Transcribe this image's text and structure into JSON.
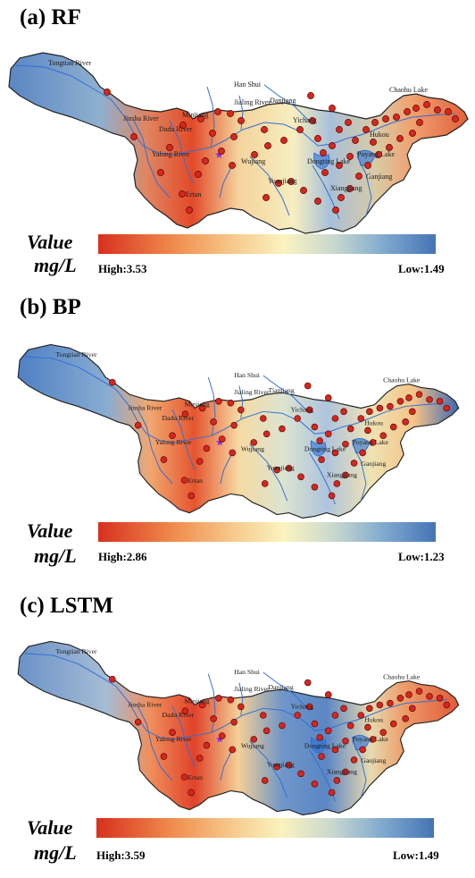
{
  "panels": [
    {
      "title": "(a) RF",
      "legend": {
        "value_label": "Value",
        "unit_label": "mg/L",
        "high": "High:3.53",
        "low": "Low:1.49"
      },
      "labels": {
        "tongtian": "Tongtian River",
        "jinsha": "Jinsha River",
        "dadu": "Dadu River",
        "minjiang": "Minjiang",
        "yalong": "Yalong River",
        "ertan": "Ertan",
        "hanshui": "Han Shui",
        "jialing": "Jialing River",
        "danjiang": "Danjiang",
        "yichang": "Yichang",
        "wujiang": "Wujiang",
        "yuanjiang": "Yuanjiang",
        "dongting": "Dongting Lake",
        "xiangjiang": "Xiangjiang",
        "poyang": "Poyang Lake",
        "hukou": "Hukou",
        "ganjiang": "Ganjiang",
        "chaohu": "Chaohu Lake"
      }
    },
    {
      "title": "(b) BP",
      "legend": {
        "value_label": "Value",
        "unit_label": "mg/L",
        "high": "High:2.86",
        "low": "Low:1.23"
      },
      "labels": {
        "tongtian": "Tongtian River",
        "jinsha": "Jinsha River",
        "dadu": "Dadu River",
        "minjiang": "Minjiang",
        "yalong": "Yalong River",
        "ertan": "Ertan",
        "hanshui": "Han Shui",
        "jialing": "Jialing River",
        "danjiang": "Tianjiang",
        "yichang": "Yichang",
        "wujiang": "Wujiang",
        "yuanjiang": "Yuanjiang",
        "dongting": "Dongting Lake",
        "xiangjiang": "Xiangjiang",
        "poyang": "Poyang Lake",
        "hukou": "Hukou",
        "ganjiang": "Ganjiang",
        "chaohu": "Chaohu Lake"
      }
    },
    {
      "title": "(c) LSTM",
      "legend": {
        "value_label": "Value",
        "unit_label": "mg/L",
        "high": "High:3.59",
        "low": "Low:1.49"
      },
      "labels": {
        "tongtian": "Tongtian River",
        "jinsha": "Jinsha River",
        "dadu": "Dadu River",
        "minjiang": "Minjiang",
        "yalong": "Yalong River",
        "ertan": "Ertan",
        "hanshui": "Han Shui",
        "jialing": "Jialing River",
        "danjiang": "Danjiang",
        "yichang": "Yichang",
        "wujiang": "Wujiang",
        "yuanjiang": "Yuanjiang",
        "dongting": "Dongting Lake",
        "xiangjiang": "Xiangjiang",
        "poyang": "Poyang Lake",
        "hukou": "Hukou",
        "ganjiang": "Ganjiang",
        "chaohu": "Chaohu Lake"
      }
    }
  ],
  "colors": {
    "high": "#d7301f",
    "mid": "#faf3c0",
    "low": "#4574b5",
    "river": "#2f6fd6",
    "station": "#d7261e"
  }
}
